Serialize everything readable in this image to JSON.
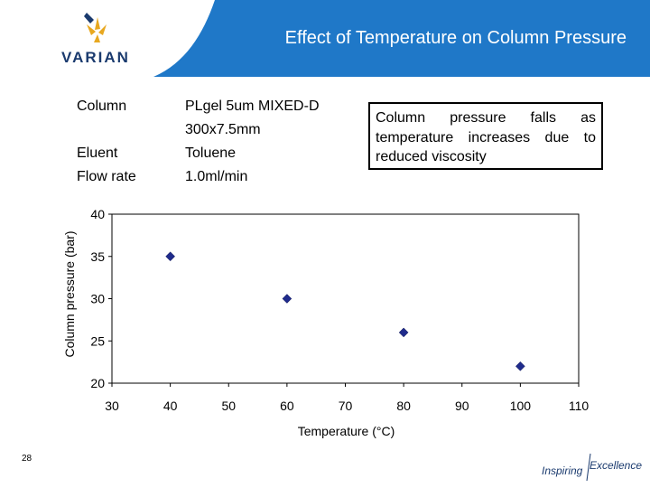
{
  "header": {
    "brand": "VARIAN",
    "title": "Effect of Temperature on Column Pressure",
    "colors": {
      "banner": "#1f78c8",
      "brand_text": "#1a3a6e",
      "logo_mark": "#e8a820"
    },
    "logo_icon": "varian-logo-icon"
  },
  "conditions": [
    {
      "label": "Column",
      "value_lines": [
        "PLgel 5um MIXED-D",
        "300x7.5mm"
      ]
    },
    {
      "label": "Eluent",
      "value_lines": [
        "Toluene"
      ]
    },
    {
      "label": "Flow rate",
      "value_lines": [
        "1.0ml/min"
      ]
    }
  ],
  "callout": {
    "text": "Column pressure falls as temperature increases due to reduced viscosity"
  },
  "chart_data": {
    "type": "scatter",
    "title": "",
    "xlabel": "Temperature (°C)",
    "ylabel": "Column pressure (bar)",
    "xlim": [
      30,
      110
    ],
    "ylim": [
      20,
      40
    ],
    "xticks": [
      30,
      40,
      50,
      60,
      70,
      80,
      90,
      100,
      110
    ],
    "yticks": [
      20,
      25,
      30,
      35,
      40
    ],
    "grid": false,
    "legend": "none",
    "marker": "diamond",
    "marker_color": "#1f2b8c",
    "x": [
      40,
      60,
      80,
      100
    ],
    "y": [
      35,
      30,
      26,
      22
    ]
  },
  "footer": {
    "page_number": "28",
    "tagline_part1": "Inspiring",
    "tagline_part2": "Excellence"
  }
}
